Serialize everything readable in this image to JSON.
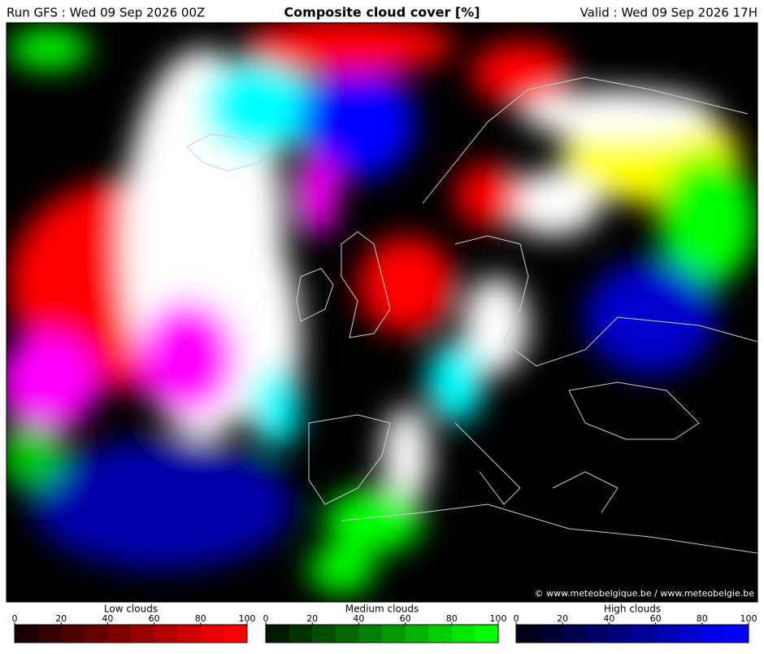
{
  "header": {
    "run": "Run GFS : Wed 09 Sep 2026 00Z",
    "title": "Composite cloud cover [%]",
    "valid": "Valid : Wed 09 Sep 2026 17H"
  },
  "map": {
    "credit": "© www.meteobelgique.be / www.meteobelgie.be"
  },
  "legends": [
    {
      "label": "Low clouds",
      "range": [
        0,
        100
      ],
      "ticks": [
        0,
        20,
        40,
        60,
        80,
        100
      ],
      "colors": [
        "#1a0000",
        "#330000",
        "#4d0000",
        "#660000",
        "#800000",
        "#990000",
        "#b30000",
        "#cc0000",
        "#e60000",
        "#ff0000"
      ]
    },
    {
      "label": "Medium clouds",
      "range": [
        0,
        100
      ],
      "ticks": [
        0,
        20,
        40,
        60,
        80,
        100
      ],
      "colors": [
        "#001a00",
        "#003300",
        "#004d00",
        "#006600",
        "#008000",
        "#009900",
        "#00b300",
        "#00cc00",
        "#00e600",
        "#00ff00"
      ]
    },
    {
      "label": "High clouds",
      "range": [
        0,
        100
      ],
      "ticks": [
        0,
        20,
        40,
        60,
        80,
        100
      ],
      "colors": [
        "#00001a",
        "#000033",
        "#00004d",
        "#000066",
        "#000080",
        "#000099",
        "#0000b3",
        "#0000cc",
        "#0000e6",
        "#0000ff"
      ]
    }
  ]
}
